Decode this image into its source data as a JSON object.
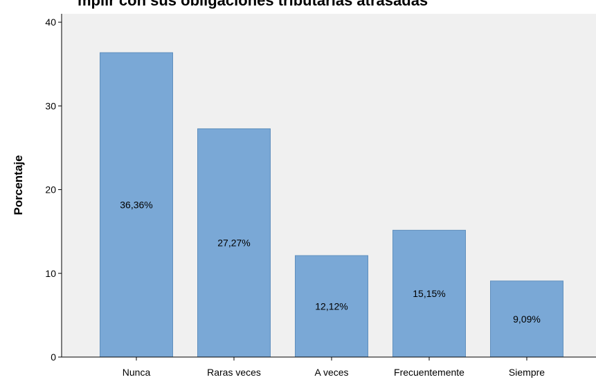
{
  "chart_data": {
    "type": "bar",
    "title": "mplir con sus obligaciones tributarias atrasadas",
    "xlabel": "",
    "ylabel": "Porcentaje",
    "categories": [
      "Nunca",
      "Raras veces",
      "A veces",
      "Frecuentemente",
      "Siempre"
    ],
    "values": [
      36.36,
      27.27,
      12.12,
      15.15,
      9.09
    ],
    "data_labels": [
      "36,36%",
      "27,27%",
      "12,12%",
      "15,15%",
      "9,09%"
    ],
    "yticks": [
      0,
      10,
      20,
      30,
      40
    ],
    "ylim": [
      0,
      41
    ],
    "grid": false,
    "legend": "none",
    "colors": {
      "bar": "#7aa8d6",
      "bar_edge": "#5f8fbd",
      "plot_background": "#f0f0f0",
      "axis": "#000000"
    }
  }
}
